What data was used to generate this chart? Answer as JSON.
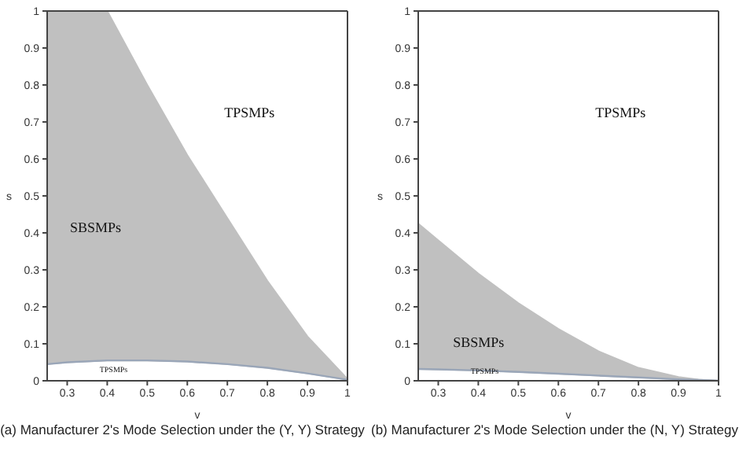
{
  "chart_data": [
    {
      "type": "area",
      "title": "(a) Manufacturer 2's Mode Selection under the (Y, Y) Strategy",
      "xlabel": "v",
      "ylabel": "s",
      "x": [
        0.25,
        0.3,
        0.4,
        0.5,
        0.6,
        0.7,
        0.8,
        0.9,
        1
      ],
      "series": [
        {
          "type": "line",
          "color": "#9aa6b8",
          "values": [
            0.045,
            0.05,
            0.055,
            0.055,
            0.052,
            0.045,
            0.035,
            0.02,
            0.003
          ]
        },
        {
          "color": "#c0c0c0",
          "values": [
            1,
            1,
            1,
            0.8,
            0.61,
            0.44,
            0.27,
            0.12,
            0.005
          ]
        }
      ],
      "xlim": [
        0.25,
        1
      ],
      "xticks": [
        0.3,
        0.4,
        0.5,
        0.6,
        0.7,
        0.8,
        0.9,
        1
      ],
      "ylim": [
        0,
        1
      ],
      "yticks": [
        0,
        0.1,
        0.2,
        0.3,
        0.4,
        0.5,
        0.6,
        0.7,
        0.8,
        0.9,
        1
      ],
      "annotations": [
        "TPSMPs",
        "SBSMPs",
        "TPSMPs"
      ]
    },
    {
      "type": "area",
      "title": "(b) Manufacturer 2's Mode Selection under the (N, Y) Strategy",
      "xlabel": "v",
      "ylabel": "s",
      "x": [
        0.25,
        0.3,
        0.4,
        0.5,
        0.6,
        0.7,
        0.8,
        0.9,
        0.95,
        1
      ],
      "series": [
        {
          "type": "line",
          "color": "#9aa6b8",
          "values": [
            0.032,
            0.031,
            0.028,
            0.024,
            0.019,
            0.014,
            0.009,
            0.004,
            0.002,
            0
          ]
        },
        {
          "color": "#c0c0c0",
          "values": [
            0.425,
            0.38,
            0.29,
            0.21,
            0.14,
            0.08,
            0.035,
            0.01,
            0.003,
            0
          ]
        }
      ],
      "xlim": [
        0.25,
        1
      ],
      "xticks": [
        0.3,
        0.4,
        0.5,
        0.6,
        0.7,
        0.8,
        0.9,
        1
      ],
      "ylim": [
        0,
        1
      ],
      "yticks": [
        0,
        0.1,
        0.2,
        0.3,
        0.4,
        0.5,
        0.6,
        0.7,
        0.8,
        0.9,
        1
      ],
      "annotations": [
        "TPSMPs",
        "SBSMPs",
        "TPSMPs"
      ]
    }
  ]
}
